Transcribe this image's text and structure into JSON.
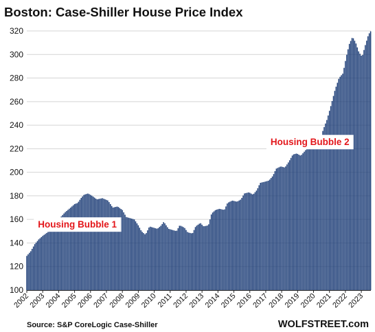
{
  "chart_data": {
    "type": "bar",
    "title": "Boston: Case-Shiller House Price Index",
    "source": "Source: S&P CoreLogic Case-Shiller",
    "brand": "WOLFSTREET.com",
    "ylim": [
      100,
      320
    ],
    "yticks": [
      100,
      120,
      140,
      160,
      180,
      200,
      220,
      240,
      260,
      280,
      300,
      320
    ],
    "xlim": [
      2002,
      2023.6
    ],
    "xticks": [
      "2002",
      "2003",
      "2004",
      "2005",
      "2006",
      "2007",
      "2008",
      "2009",
      "2010",
      "2011",
      "2012",
      "2013",
      "2014",
      "2015",
      "2016",
      "2017",
      "2018",
      "2019",
      "2020",
      "2021",
      "2022",
      "2023"
    ],
    "grid": "horizontal",
    "bar_color": "#1f3f78",
    "annotation_color": "#e3161a",
    "annotations": [
      {
        "text": "Housing Bubble 1",
        "x": 2002.7,
        "y": 153
      },
      {
        "text": "Housing Bubble 2",
        "x": 2017.3,
        "y": 223
      }
    ],
    "frequency": "monthly",
    "start": "2002-01",
    "knots": [
      [
        2002.0,
        129
      ],
      [
        2002.25,
        133
      ],
      [
        2002.5,
        139
      ],
      [
        2002.75,
        143
      ],
      [
        2003.0,
        146
      ],
      [
        2003.4,
        150
      ],
      [
        2003.7,
        154
      ],
      [
        2004.0,
        160
      ],
      [
        2004.4,
        166
      ],
      [
        2004.75,
        170
      ],
      [
        2005.0,
        173
      ],
      [
        2005.2,
        174
      ],
      [
        2005.4,
        178
      ],
      [
        2005.6,
        181
      ],
      [
        2005.85,
        182
      ],
      [
        2006.1,
        180
      ],
      [
        2006.4,
        177
      ],
      [
        2006.75,
        178
      ],
      [
        2007.1,
        176
      ],
      [
        2007.4,
        170
      ],
      [
        2007.7,
        171
      ],
      [
        2008.0,
        168
      ],
      [
        2008.25,
        162
      ],
      [
        2008.5,
        161
      ],
      [
        2008.75,
        160
      ],
      [
        2009.0,
        155
      ],
      [
        2009.2,
        150
      ],
      [
        2009.45,
        147
      ],
      [
        2009.7,
        154
      ],
      [
        2009.95,
        153
      ],
      [
        2010.2,
        152
      ],
      [
        2010.45,
        155
      ],
      [
        2010.6,
        158
      ],
      [
        2010.9,
        152
      ],
      [
        2011.15,
        151
      ],
      [
        2011.4,
        150
      ],
      [
        2011.6,
        155
      ],
      [
        2011.9,
        153
      ],
      [
        2012.1,
        149
      ],
      [
        2012.4,
        148
      ],
      [
        2012.6,
        154
      ],
      [
        2012.9,
        157
      ],
      [
        2013.1,
        154
      ],
      [
        2013.4,
        155
      ],
      [
        2013.6,
        165
      ],
      [
        2013.85,
        168
      ],
      [
        2014.1,
        169
      ],
      [
        2014.4,
        168
      ],
      [
        2014.6,
        174
      ],
      [
        2014.9,
        176
      ],
      [
        2015.2,
        175
      ],
      [
        2015.45,
        177
      ],
      [
        2015.65,
        182
      ],
      [
        2015.95,
        183
      ],
      [
        2016.2,
        181
      ],
      [
        2016.45,
        185
      ],
      [
        2016.65,
        191
      ],
      [
        2016.95,
        192
      ],
      [
        2017.2,
        193
      ],
      [
        2017.45,
        197
      ],
      [
        2017.65,
        203
      ],
      [
        2017.95,
        205
      ],
      [
        2018.2,
        204
      ],
      [
        2018.45,
        209
      ],
      [
        2018.7,
        215
      ],
      [
        2018.95,
        216
      ],
      [
        2019.2,
        214
      ],
      [
        2019.45,
        218
      ],
      [
        2019.7,
        222
      ],
      [
        2019.95,
        221
      ],
      [
        2020.2,
        223
      ],
      [
        2020.45,
        228
      ],
      [
        2020.6,
        236
      ],
      [
        2020.85,
        245
      ],
      [
        2021.1,
        257
      ],
      [
        2021.35,
        270
      ],
      [
        2021.6,
        280
      ],
      [
        2021.85,
        284
      ],
      [
        2022.05,
        298
      ],
      [
        2022.25,
        309
      ],
      [
        2022.45,
        315
      ],
      [
        2022.65,
        310
      ],
      [
        2022.85,
        302
      ],
      [
        2023.05,
        298
      ],
      [
        2023.25,
        308
      ],
      [
        2023.45,
        317
      ],
      [
        2023.6,
        320
      ]
    ]
  }
}
